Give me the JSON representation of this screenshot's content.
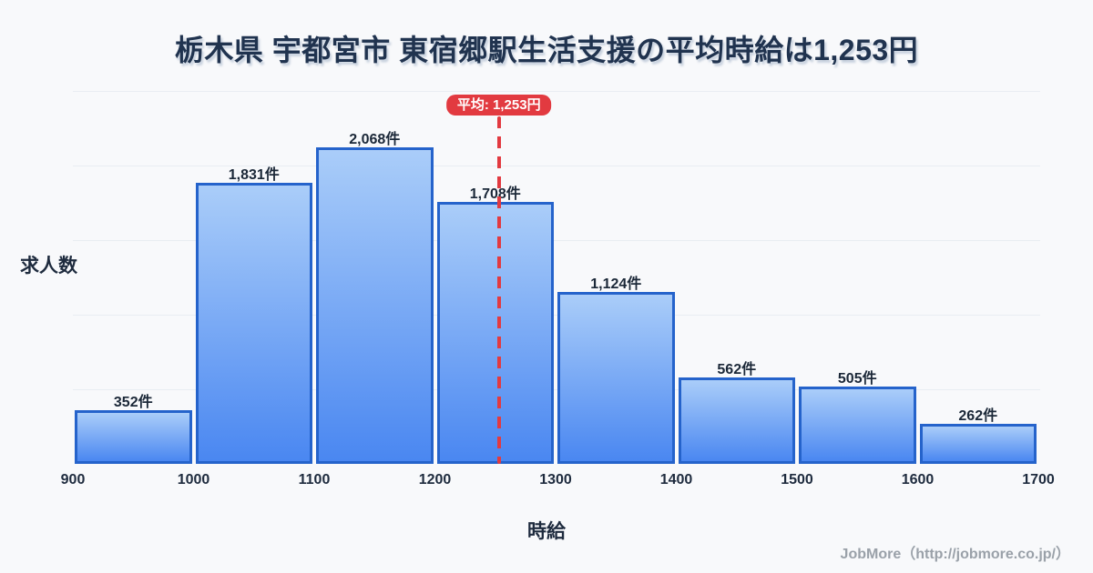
{
  "page": {
    "title": "栃木県 宇都宮市 東宿郷駅生活支援の平均時給は1,253円",
    "footer": "JobMore（http://jobmore.co.jp/）"
  },
  "chart_data": {
    "type": "bar",
    "subtype": "histogram",
    "title": "栃木県 宇都宮市 東宿郷駅生活支援の平均時給は1,253円",
    "xlabel": "時給",
    "ylabel": "求人数",
    "bin_edges": [
      900,
      1000,
      1100,
      1200,
      1300,
      1400,
      1500,
      1600,
      1700
    ],
    "x_ticks": [
      "900",
      "1000",
      "1100",
      "1200",
      "1300",
      "1400",
      "1500",
      "1600",
      "1700"
    ],
    "categories": [
      "900-1000",
      "1000-1100",
      "1100-1200",
      "1200-1300",
      "1300-1400",
      "1400-1500",
      "1500-1600",
      "1600-1700"
    ],
    "values": [
      352,
      1831,
      2068,
      1708,
      1124,
      562,
      505,
      262
    ],
    "value_labels": [
      "352件",
      "1,831件",
      "2,068件",
      "1,708件",
      "1,124件",
      "562件",
      "505件",
      "262件"
    ],
    "average": {
      "value": 1253,
      "label": "平均: 1,253円"
    },
    "grid": true,
    "legend": false,
    "ylim": [
      0,
      2430
    ],
    "colors": {
      "background": "#f8f9fb",
      "bar_fill_top": "#aacdf9",
      "bar_fill_bottom": "#4a87f1",
      "bar_border": "#2563cb",
      "average_line": "#e23a40",
      "badge_bg": "#e23a40",
      "badge_text": "#ffffff",
      "grid": "#e9edf2",
      "text": "#1e2b3e",
      "title_text": "#20334f",
      "footer_text": "#9aa1a9"
    }
  }
}
